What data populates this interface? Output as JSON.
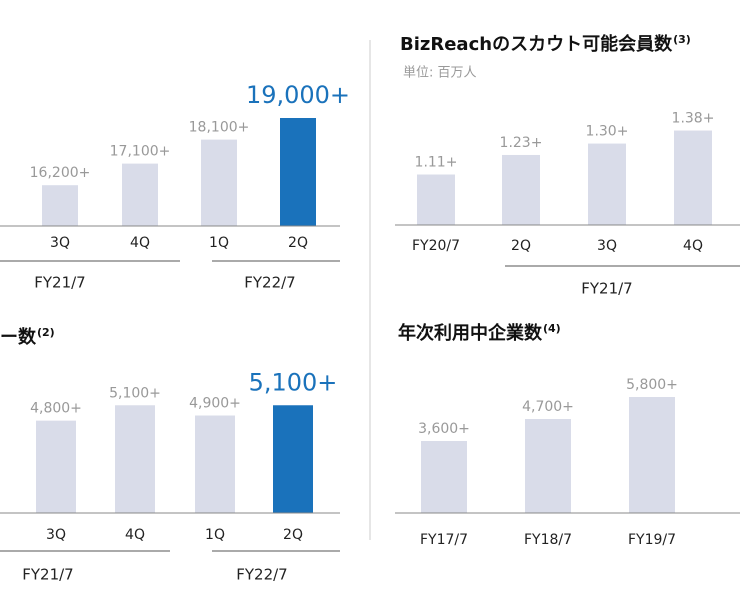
{
  "chart_data": [
    {
      "type": "bar",
      "categories": [
        "3Q",
        "4Q",
        "1Q",
        "2Q"
      ],
      "values": [
        16200,
        17100,
        18100,
        19000
      ],
      "value_labels": [
        "16,200+",
        "17,100+",
        "18,100+",
        "19,000+"
      ],
      "colors": [
        "#d9dce9",
        "#d9dce9",
        "#d9dce9",
        "#1a72bb"
      ],
      "highlight": 3,
      "highlight_color": "#1a72bb",
      "ylim": [
        14500,
        19500
      ],
      "groups": [
        {
          "label": "FY21/7",
          "count": 2
        },
        {
          "label": "FY22/7",
          "count": 2
        }
      ]
    },
    {
      "type": "bar",
      "title": "ー数",
      "note": "(2)",
      "categories": [
        "3Q",
        "4Q",
        "1Q",
        "2Q"
      ],
      "values": [
        4800,
        5100,
        4900,
        5100
      ],
      "value_labels": [
        "4,800+",
        "5,100+",
        "4,900+",
        "5,100+"
      ],
      "colors": [
        "#d9dce9",
        "#d9dce9",
        "#d9dce9",
        "#1a72bb"
      ],
      "highlight": 3,
      "highlight_color": "#1a72bb",
      "ylim": [
        3000,
        5300
      ],
      "groups": [
        {
          "label": "FY21/7",
          "count": 2
        },
        {
          "label": "FY22/7",
          "count": 2
        }
      ]
    },
    {
      "type": "bar",
      "title": "BizReachのスカウト可能会員数",
      "note": "(3)",
      "subtitle": "単位: 百万人",
      "categories": [
        "FY20/7",
        "2Q",
        "3Q",
        "4Q"
      ],
      "values": [
        1.11,
        1.23,
        1.3,
        1.38
      ],
      "value_labels": [
        "1.11+",
        "1.23+",
        "1.30+",
        "1.38+"
      ],
      "colors": [
        "#d9dce9",
        "#d9dce9",
        "#d9dce9",
        "#d9dce9"
      ],
      "ylim": [
        0.8,
        1.5
      ],
      "groups": [
        {
          "label": "FY21/7",
          "count": 3
        }
      ]
    },
    {
      "type": "bar",
      "title": "年次利用中企業数",
      "note": "(4)",
      "categories": [
        "FY17/7",
        "FY18/7",
        "FY19/7"
      ],
      "values": [
        3600,
        4700,
        5800
      ],
      "value_labels": [
        "3,600+",
        "4,700+",
        "5,800+"
      ],
      "colors": [
        "#d9dce9",
        "#d9dce9",
        "#d9dce9"
      ],
      "ylim": [
        0,
        6000
      ]
    }
  ]
}
